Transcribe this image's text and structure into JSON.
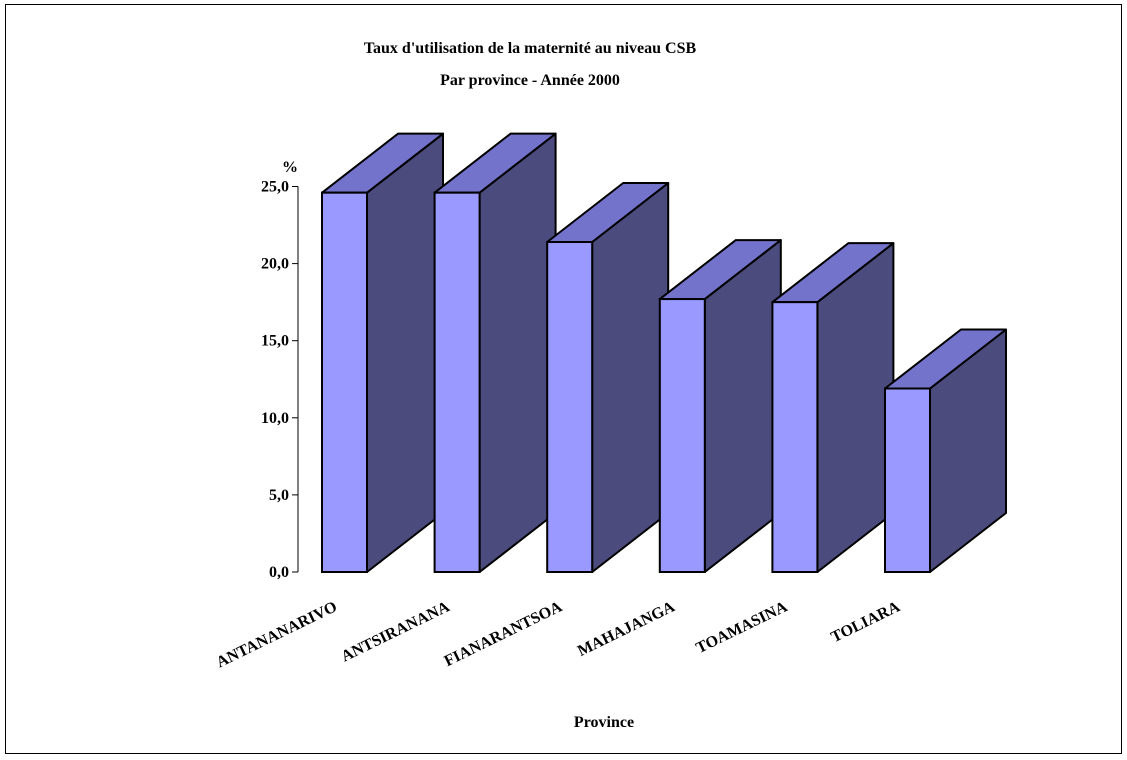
{
  "chart_data": {
    "type": "bar",
    "title": "Taux d'utilisation de la maternité au niveau CSB",
    "subtitle": "Par province - Année  2000",
    "xlabel": "Province",
    "ylabel": "%",
    "categories": [
      "ANTANANARIVO",
      "ANTSIRANANA",
      "FIANARANTSOA",
      "MAHAJANGA",
      "TOAMASINA",
      "TOLIARA"
    ],
    "values": [
      24.6,
      24.6,
      21.4,
      17.7,
      17.5,
      11.9
    ],
    "ylim": [
      0,
      25
    ],
    "yticks": [
      "0,0",
      "5,0",
      "10,0",
      "15,0",
      "20,0",
      "25,0"
    ],
    "yticks_values": [
      0,
      5,
      10,
      15,
      20,
      25
    ],
    "grid": false,
    "legend": "none",
    "three_d": true,
    "colors": {
      "front": "#9999ff",
      "side": "#4b4b7d",
      "top": "#7373cc",
      "outline": "#000000"
    }
  }
}
